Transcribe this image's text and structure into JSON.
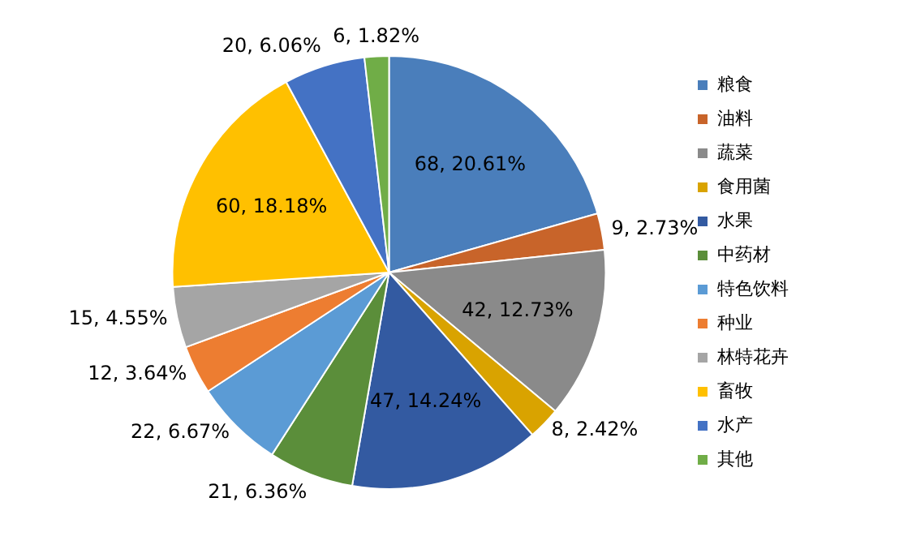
{
  "chart_data": {
    "type": "pie",
    "categories": [
      "粮食",
      "油料",
      "蔬菜",
      "食用菌",
      "水果",
      "中药材",
      "特色饮料",
      "种业",
      "林特花卉",
      "畜牧",
      "水产",
      "其他"
    ],
    "values": [
      68,
      9,
      42,
      8,
      47,
      21,
      22,
      12,
      15,
      60,
      20,
      6
    ],
    "colors": [
      "#4a7ebb",
      "#c8642a",
      "#8a8a8a",
      "#d9a300",
      "#335aa1",
      "#5b8e3a",
      "#5b9bd5",
      "#ed7d31",
      "#a5a5a5",
      "#ffc000",
      "#4472c4",
      "#70ad47"
    ],
    "value_labels": [
      "68, 20.61%",
      "9, 2.73%",
      "42, 12.73%",
      "8, 2.42%",
      "47, 14.24%",
      "21, 6.36%",
      "22, 6.67%",
      "12, 3.64%",
      "15, 4.55%",
      "60, 18.18%",
      "20, 6.06%",
      "6, 1.82%"
    ],
    "legend": "right"
  }
}
